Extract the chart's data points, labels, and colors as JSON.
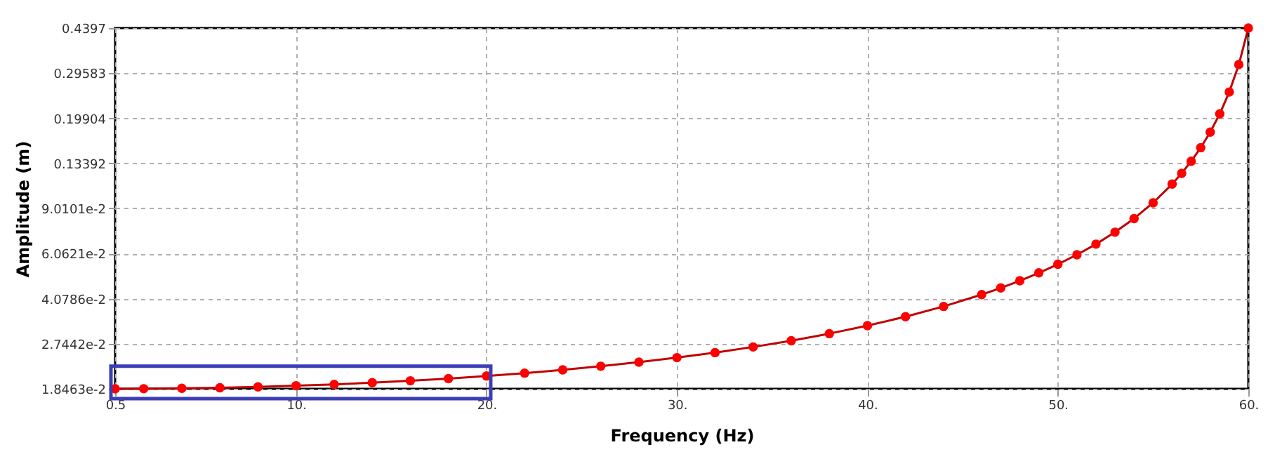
{
  "chart_data": {
    "type": "line",
    "xlabel": "Frequency (Hz)",
    "ylabel": "Amplitude (m)",
    "x": [
      0.5,
      2,
      4,
      6,
      8,
      10,
      12,
      14,
      16,
      18,
      20,
      22,
      24,
      26,
      28,
      30,
      32,
      34,
      36,
      38,
      40,
      42,
      44,
      46,
      47,
      48,
      49,
      50,
      51,
      52,
      53,
      54,
      55,
      56,
      56.5,
      57,
      57.5,
      58,
      58.5,
      59,
      59.5,
      60
    ],
    "series": [
      {
        "color": "#ff0000",
        "values": [
          0.018463,
          0.01848,
          0.01854,
          0.01864,
          0.01878,
          0.01897,
          0.0192,
          0.01948,
          0.01981,
          0.0202,
          0.02066,
          0.02119,
          0.02181,
          0.02251,
          0.02333,
          0.02428,
          0.02538,
          0.02667,
          0.02818,
          0.02998,
          0.03215,
          0.0348,
          0.03808,
          0.04226,
          0.04479,
          0.04772,
          0.05114,
          0.05516,
          0.05998,
          0.06584,
          0.07313,
          0.08242,
          0.09468,
          0.1116,
          0.1227,
          0.1364,
          0.1537,
          0.1762,
          0.2068,
          0.2507,
          0.319,
          0.4397
        ]
      }
    ],
    "log": "y",
    "xlim": [
      0.5,
      60
    ],
    "ylim": [
      0.018463,
      0.4397
    ],
    "xticks": [
      0.5,
      {
        "value": 10,
        "label": "10."
      },
      {
        "value": 20,
        "label": "20."
      },
      {
        "value": 30,
        "label": "30."
      },
      {
        "value": 40,
        "label": "40."
      },
      {
        "value": 50,
        "label": "50."
      },
      {
        "value": 60,
        "label": "60."
      }
    ],
    "yticks": [
      {
        "value": 0.018463,
        "label": "1.8463e-2"
      },
      {
        "value": 0.027442,
        "label": "2.7442e-2"
      },
      {
        "value": 0.040786,
        "label": "4.0786e-2"
      },
      {
        "value": 0.060621,
        "label": "6.0621e-2"
      },
      {
        "value": 0.090101,
        "label": "9.0101e-2"
      },
      0.13392,
      0.19904,
      0.29583,
      0.4397
    ],
    "grid": true,
    "marker": "circle",
    "line_style": "solid"
  }
}
